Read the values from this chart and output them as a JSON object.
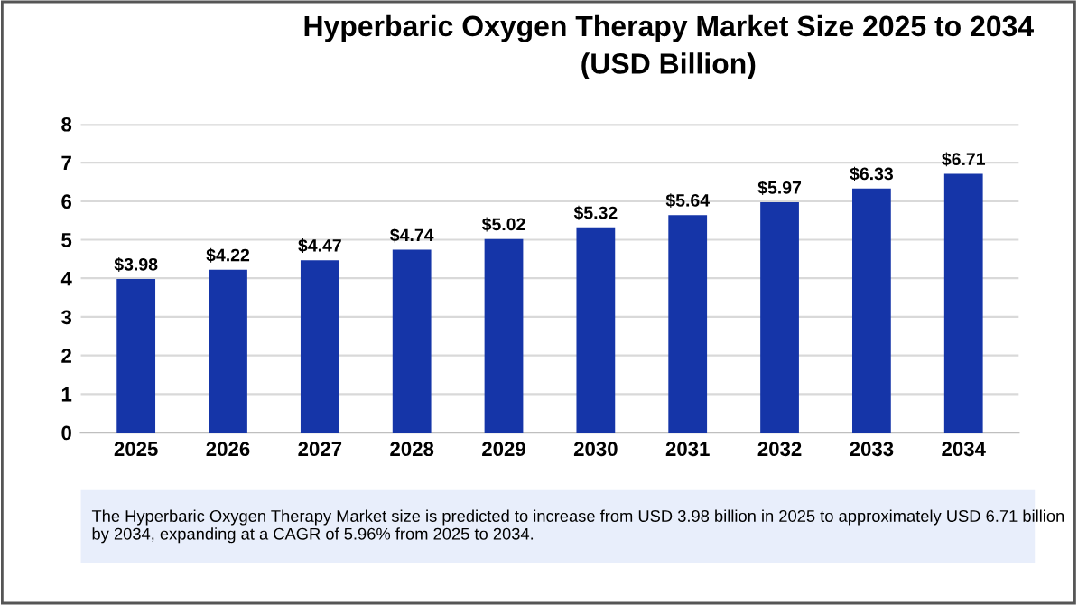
{
  "chart_data": {
    "type": "bar",
    "title": "Hyperbaric Oxygen Therapy Market Size 2025 to 2034\n(USD Billion)",
    "categories": [
      "2025",
      "2026",
      "2027",
      "2028",
      "2029",
      "2030",
      "2031",
      "2032",
      "2033",
      "2034"
    ],
    "values": [
      3.98,
      4.22,
      4.47,
      4.74,
      5.02,
      5.32,
      5.64,
      5.97,
      6.33,
      6.71
    ],
    "value_labels": [
      "$3.98",
      "$4.22",
      "$4.47",
      "$4.74",
      "$5.02",
      "$5.32",
      "$5.64",
      "$5.97",
      "$6.33",
      "$6.71"
    ],
    "color": "#1535a8",
    "ylim": [
      0,
      8
    ],
    "yticks": [
      0,
      1,
      2,
      3,
      4,
      5,
      6,
      7,
      8
    ],
    "grid": "y",
    "annotations": [
      "The Hyperbaric Oxygen Therapy Market size is predicted to increase from USD 3.98 billion in 2025 to approximately USD 6.71 billion by 2034, expanding at a CAGR of 5.96% from 2025 to 2034."
    ]
  }
}
